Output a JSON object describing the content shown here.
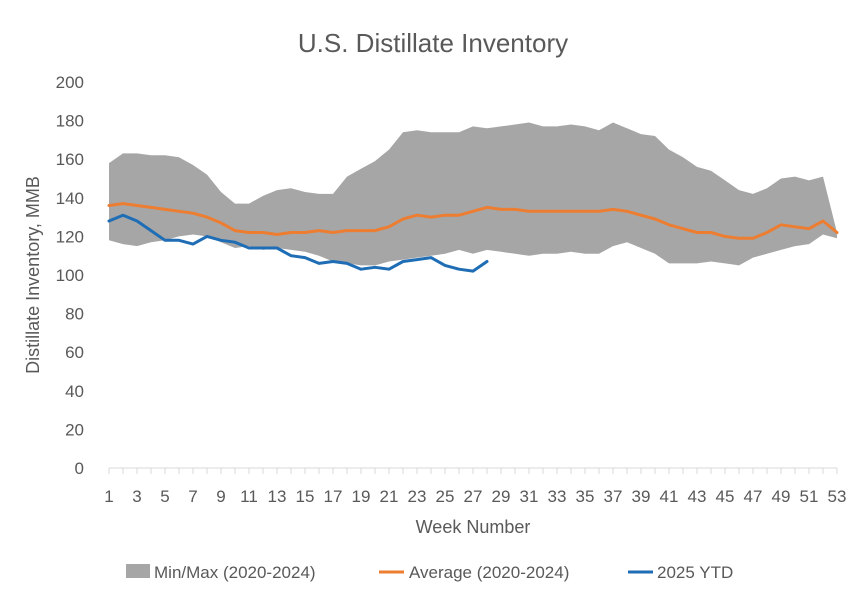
{
  "chart_data": {
    "type": "area",
    "title": "U.S. Distillate Inventory",
    "xlabel": "Week Number",
    "ylabel": "Distillate Inventory, MMB",
    "xlim": [
      1,
      53
    ],
    "ylim": [
      0,
      200
    ],
    "y_ticks": [
      0,
      20,
      40,
      60,
      80,
      100,
      120,
      140,
      160,
      180,
      200
    ],
    "x_tick_labels": [
      "1",
      "3",
      "5",
      "7",
      "9",
      "11",
      "13",
      "15",
      "17",
      "19",
      "21",
      "23",
      "25",
      "27",
      "29",
      "31",
      "33",
      "35",
      "37",
      "39",
      "41",
      "43",
      "45",
      "47",
      "49",
      "51",
      "53"
    ],
    "x_tick_values": [
      1,
      3,
      5,
      7,
      9,
      11,
      13,
      15,
      17,
      19,
      21,
      23,
      25,
      27,
      29,
      31,
      33,
      35,
      37,
      39,
      41,
      43,
      45,
      47,
      49,
      51,
      53
    ],
    "legend_position": "bottom",
    "grid": false,
    "series": [
      {
        "name": "Min/Max (2020-2024)",
        "kind": "band",
        "color": "#A6A6A6",
        "x": [
          1,
          2,
          3,
          4,
          5,
          6,
          7,
          8,
          9,
          10,
          11,
          12,
          13,
          14,
          15,
          16,
          17,
          18,
          19,
          20,
          21,
          22,
          23,
          24,
          25,
          26,
          27,
          28,
          29,
          30,
          31,
          32,
          33,
          34,
          35,
          36,
          37,
          38,
          39,
          40,
          41,
          42,
          43,
          44,
          45,
          46,
          47,
          48,
          49,
          50,
          51,
          52,
          53
        ],
        "max": [
          158,
          163,
          163,
          162,
          162,
          161,
          157,
          152,
          143,
          137,
          137,
          141,
          144,
          145,
          143,
          142,
          142,
          151,
          155,
          159,
          165,
          174,
          175,
          174,
          174,
          174,
          177,
          176,
          177,
          178,
          179,
          177,
          177,
          178,
          177,
          175,
          179,
          176,
          173,
          172,
          165,
          161,
          156,
          154,
          149,
          144,
          142,
          145,
          150,
          151,
          149,
          151,
          122
        ],
        "min": [
          118,
          116,
          115,
          117,
          118,
          120,
          121,
          120,
          117,
          114,
          115,
          113,
          114,
          113,
          112,
          110,
          107,
          106,
          105,
          105,
          107,
          108,
          109,
          110,
          111,
          113,
          111,
          113,
          112,
          111,
          110,
          111,
          111,
          112,
          111,
          111,
          115,
          117,
          114,
          111,
          106,
          106,
          106,
          107,
          106,
          105,
          109,
          111,
          113,
          115,
          116,
          121,
          119
        ]
      },
      {
        "name": "Average (2020-2024)",
        "kind": "line",
        "color": "#ED7D31",
        "x": [
          1,
          2,
          3,
          4,
          5,
          6,
          7,
          8,
          9,
          10,
          11,
          12,
          13,
          14,
          15,
          16,
          17,
          18,
          19,
          20,
          21,
          22,
          23,
          24,
          25,
          26,
          27,
          28,
          29,
          30,
          31,
          32,
          33,
          34,
          35,
          36,
          37,
          38,
          39,
          40,
          41,
          42,
          43,
          44,
          45,
          46,
          47,
          48,
          49,
          50,
          51,
          52,
          53
        ],
        "values": [
          136,
          137,
          136,
          135,
          134,
          133,
          132,
          130,
          127,
          123,
          122,
          122,
          121,
          122,
          122,
          123,
          122,
          123,
          123,
          123,
          125,
          129,
          131,
          130,
          131,
          131,
          133,
          135,
          134,
          134,
          133,
          133,
          133,
          133,
          133,
          133,
          134,
          133,
          131,
          129,
          126,
          124,
          122,
          122,
          120,
          119,
          119,
          122,
          126,
          125,
          124,
          128,
          122
        ]
      },
      {
        "name": "2025 YTD",
        "kind": "line",
        "color": "#1F6EB5",
        "x": [
          1,
          2,
          3,
          4,
          5,
          6,
          7,
          8,
          9,
          10,
          11,
          12,
          13,
          14,
          15,
          16,
          17,
          18,
          19,
          20,
          21,
          22,
          23,
          24,
          25,
          26,
          27,
          28
        ],
        "values": [
          128,
          131,
          128,
          123,
          118,
          118,
          116,
          120,
          118,
          117,
          114,
          114,
          114,
          110,
          109,
          106,
          107,
          106,
          103,
          104,
          103,
          107,
          108,
          109,
          105,
          103,
          102,
          107
        ]
      }
    ]
  }
}
